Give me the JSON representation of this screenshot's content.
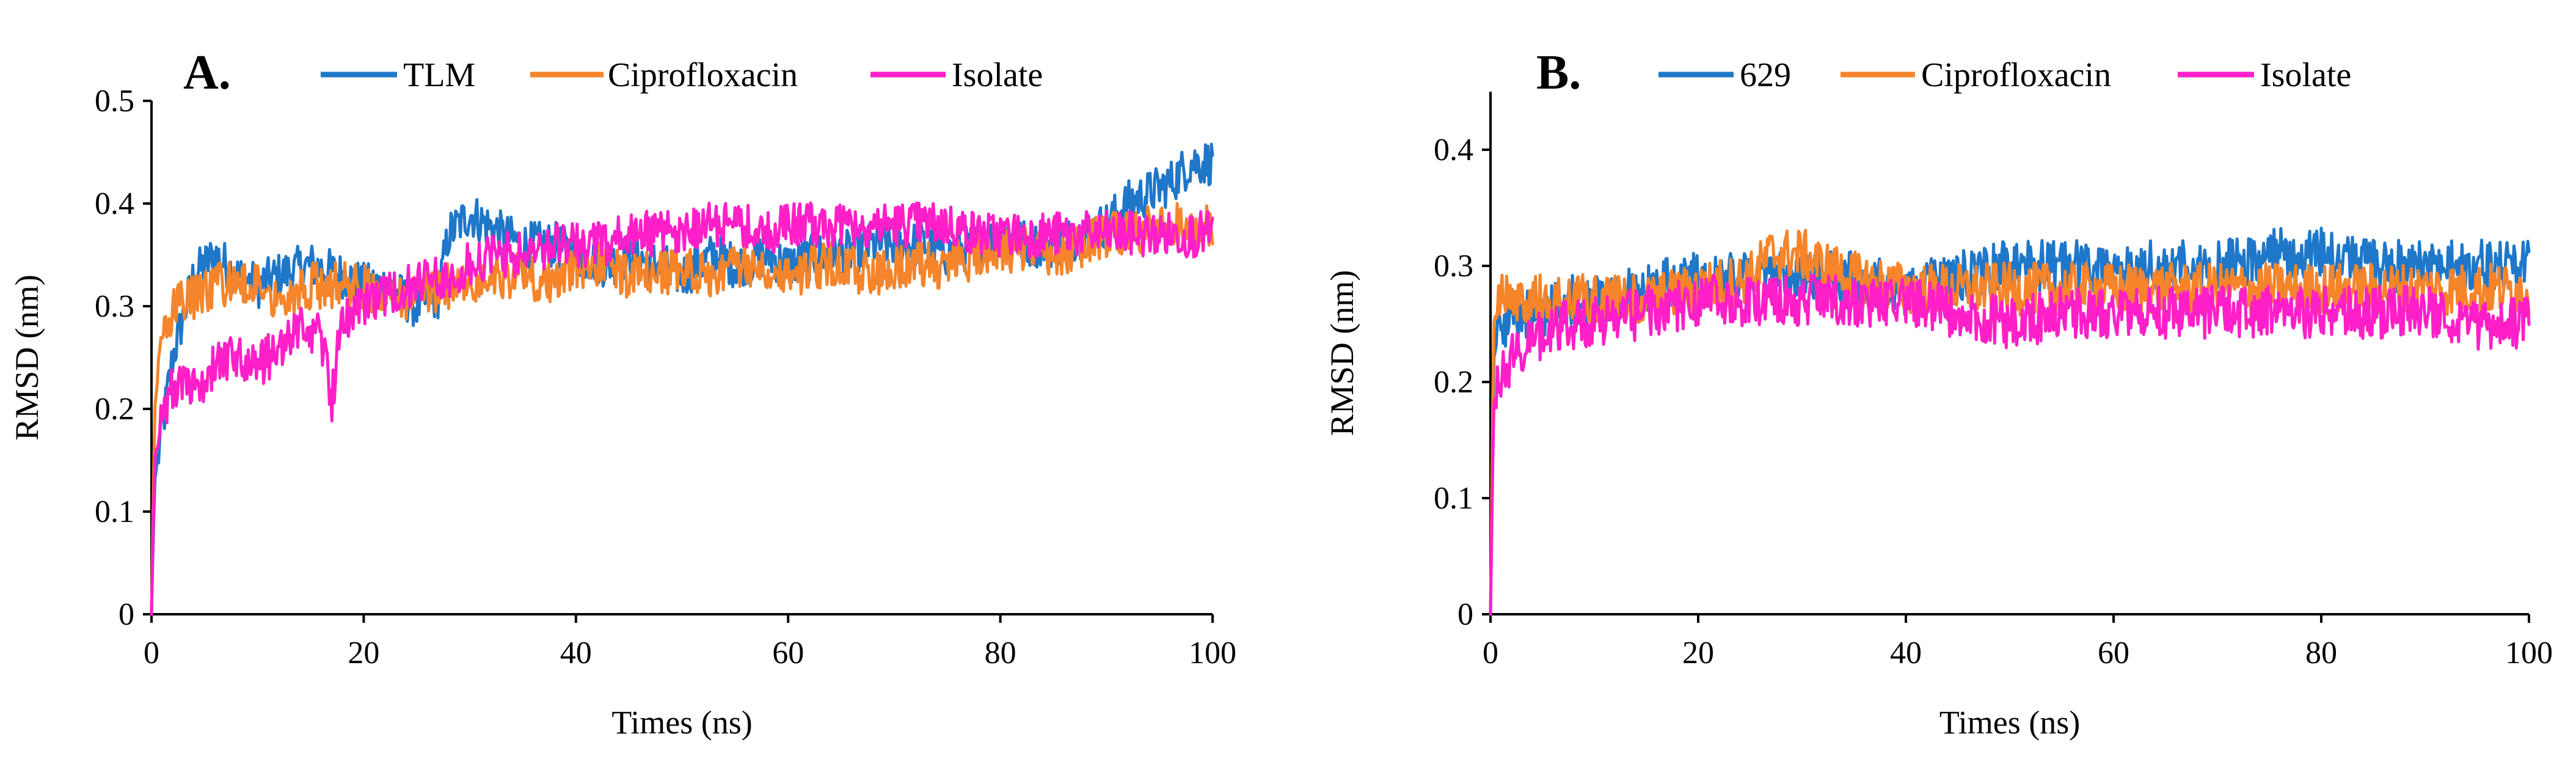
{
  "chart_data": [
    {
      "type": "line",
      "panel_label": "A.",
      "xlabel": "Times (ns)",
      "ylabel": "RMSD (nm)",
      "xlim": [
        0,
        100
      ],
      "ylim": [
        0,
        0.5
      ],
      "xticks": [
        0,
        20,
        40,
        60,
        80,
        100
      ],
      "xtick_labels": [
        "0",
        "20",
        "40",
        "60",
        "80",
        "100"
      ],
      "yticks": [
        0,
        0.1,
        0.2,
        0.3,
        0.4,
        0.5
      ],
      "ytick_labels": [
        "0",
        "0.1",
        "0.2",
        "0.3",
        "0.4",
        "0.5"
      ],
      "legend_position": "top",
      "series": [
        {
          "name": "TLM",
          "color": "#1f77c9",
          "x": [
            0,
            0.3,
            1,
            2,
            4,
            6,
            8,
            10,
            12,
            15,
            18,
            20,
            22,
            25,
            27,
            28,
            30,
            33,
            35,
            38,
            40,
            43,
            45,
            48,
            50,
            53,
            55,
            58,
            60,
            63,
            65,
            68,
            70,
            73,
            75,
            78,
            80,
            83,
            85,
            88,
            90,
            92,
            94,
            96,
            98,
            100
          ],
          "values": [
            0,
            0.13,
            0.18,
            0.25,
            0.33,
            0.35,
            0.33,
            0.32,
            0.33,
            0.34,
            0.33,
            0.32,
            0.32,
            0.3,
            0.31,
            0.37,
            0.39,
            0.37,
            0.36,
            0.36,
            0.35,
            0.34,
            0.35,
            0.34,
            0.33,
            0.35,
            0.34,
            0.35,
            0.34,
            0.35,
            0.35,
            0.36,
            0.36,
            0.36,
            0.35,
            0.36,
            0.37,
            0.36,
            0.36,
            0.37,
            0.38,
            0.4,
            0.41,
            0.42,
            0.44,
            0.44
          ]
        },
        {
          "name": "Ciprofloxacin",
          "color": "#f5842a",
          "x": [
            0,
            0.3,
            1,
            2,
            4,
            6,
            8,
            10,
            12,
            15,
            18,
            20,
            22,
            25,
            28,
            30,
            33,
            35,
            38,
            40,
            43,
            45,
            48,
            50,
            53,
            55,
            58,
            60,
            63,
            65,
            68,
            70,
            73,
            75,
            78,
            80,
            83,
            85,
            88,
            90,
            93,
            95,
            98,
            100
          ],
          "values": [
            0,
            0.2,
            0.27,
            0.3,
            0.31,
            0.32,
            0.32,
            0.32,
            0.31,
            0.32,
            0.32,
            0.32,
            0.31,
            0.31,
            0.32,
            0.32,
            0.33,
            0.33,
            0.32,
            0.34,
            0.34,
            0.33,
            0.33,
            0.34,
            0.33,
            0.34,
            0.34,
            0.33,
            0.34,
            0.34,
            0.33,
            0.34,
            0.34,
            0.34,
            0.35,
            0.35,
            0.36,
            0.35,
            0.36,
            0.37,
            0.37,
            0.38,
            0.38,
            0.38
          ]
        },
        {
          "name": "Isolate",
          "color": "#ff1fc8",
          "x": [
            0,
            0.3,
            1,
            2,
            4,
            6,
            8,
            10,
            12,
            14,
            16,
            17,
            18,
            20,
            22,
            25,
            28,
            30,
            33,
            35,
            38,
            40,
            43,
            45,
            48,
            50,
            53,
            55,
            58,
            60,
            63,
            65,
            68,
            70,
            73,
            75,
            78,
            80,
            83,
            85,
            88,
            90,
            93,
            95,
            98,
            100
          ],
          "values": [
            0,
            0.15,
            0.2,
            0.22,
            0.22,
            0.24,
            0.25,
            0.24,
            0.26,
            0.28,
            0.27,
            0.21,
            0.29,
            0.3,
            0.31,
            0.32,
            0.33,
            0.34,
            0.35,
            0.35,
            0.36,
            0.36,
            0.36,
            0.37,
            0.37,
            0.37,
            0.38,
            0.38,
            0.37,
            0.38,
            0.38,
            0.38,
            0.38,
            0.38,
            0.38,
            0.38,
            0.37,
            0.37,
            0.37,
            0.37,
            0.37,
            0.37,
            0.37,
            0.37,
            0.37,
            0.37
          ]
        }
      ]
    },
    {
      "type": "line",
      "panel_label": "B.",
      "xlabel": "Times (ns)",
      "ylabel": "RMSD (nm)",
      "xlim": [
        0,
        100
      ],
      "ylim": [
        0,
        0.45
      ],
      "xticks": [
        0,
        20,
        40,
        60,
        80,
        100
      ],
      "xtick_labels": [
        "0",
        "20",
        "40",
        "60",
        "80",
        "100"
      ],
      "yticks": [
        0,
        0.1,
        0.2,
        0.3,
        0.4
      ],
      "ytick_labels": [
        "0",
        "0.1",
        "0.2",
        "0.3",
        "0.4"
      ],
      "legend_position": "top",
      "series": [
        {
          "name": "629",
          "color": "#1f77c9",
          "x": [
            0,
            0.3,
            1,
            3,
            5,
            8,
            10,
            15,
            20,
            25,
            28,
            30,
            35,
            40,
            45,
            50,
            55,
            60,
            65,
            70,
            75,
            78,
            80,
            85,
            90,
            95,
            100
          ],
          "values": [
            0,
            0.22,
            0.25,
            0.26,
            0.26,
            0.27,
            0.27,
            0.28,
            0.29,
            0.29,
            0.29,
            0.29,
            0.29,
            0.28,
            0.29,
            0.3,
            0.3,
            0.3,
            0.3,
            0.3,
            0.31,
            0.31,
            0.31,
            0.3,
            0.3,
            0.3,
            0.3
          ]
        },
        {
          "name": "Ciprofloxacin",
          "color": "#f5842a",
          "x": [
            0,
            0.3,
            1,
            3,
            5,
            8,
            10,
            15,
            20,
            25,
            27,
            30,
            32,
            35,
            40,
            45,
            50,
            55,
            60,
            65,
            70,
            75,
            80,
            85,
            90,
            95,
            100
          ],
          "values": [
            0,
            0.25,
            0.28,
            0.27,
            0.27,
            0.27,
            0.27,
            0.27,
            0.28,
            0.29,
            0.31,
            0.31,
            0.3,
            0.29,
            0.28,
            0.28,
            0.28,
            0.28,
            0.28,
            0.28,
            0.28,
            0.28,
            0.28,
            0.28,
            0.28,
            0.28,
            0.28
          ]
        },
        {
          "name": "Isolate",
          "color": "#ff1fc8",
          "x": [
            0,
            0.3,
            1,
            2,
            3,
            5,
            8,
            10,
            15,
            20,
            25,
            30,
            35,
            40,
            45,
            50,
            55,
            60,
            65,
            70,
            75,
            80,
            85,
            90,
            95,
            100
          ],
          "values": [
            0,
            0.18,
            0.21,
            0.22,
            0.23,
            0.24,
            0.25,
            0.25,
            0.26,
            0.27,
            0.27,
            0.27,
            0.27,
            0.27,
            0.26,
            0.25,
            0.26,
            0.26,
            0.26,
            0.26,
            0.26,
            0.26,
            0.26,
            0.26,
            0.25,
            0.25
          ]
        }
      ]
    }
  ]
}
